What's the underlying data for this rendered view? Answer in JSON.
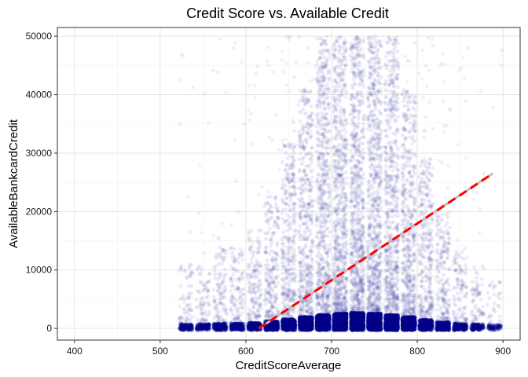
{
  "chart_data": {
    "type": "scatter",
    "title": "Credit Score vs. Available Credit",
    "xlabel": "CreditScoreAverage",
    "ylabel": "AvailableBankcardCredit",
    "xlim": [
      380,
      920
    ],
    "ylim": [
      -2000,
      51500
    ],
    "x_ticks": [
      400,
      500,
      600,
      700,
      800,
      900
    ],
    "y_ticks": [
      0,
      10000,
      20000,
      30000,
      40000,
      50000
    ],
    "grid": true,
    "legend": "none",
    "colors": {
      "points": "#00008b",
      "trend_line": "#ff0000",
      "smooth_line": "#bdbdbd",
      "grid_major": "#e5e5e5",
      "grid_minor": "#f2f2f2",
      "panel_border": "#333333"
    },
    "point_clusters": [
      {
        "x": 530,
        "density": 2
      },
      {
        "x": 550,
        "density": 2
      },
      {
        "x": 570,
        "density": 3
      },
      {
        "x": 590,
        "density": 3
      },
      {
        "x": 610,
        "density": 4
      },
      {
        "x": 630,
        "density": 6
      },
      {
        "x": 650,
        "density": 9
      },
      {
        "x": 670,
        "density": 12
      },
      {
        "x": 690,
        "density": 15
      },
      {
        "x": 710,
        "density": 17
      },
      {
        "x": 730,
        "density": 18
      },
      {
        "x": 750,
        "density": 17
      },
      {
        "x": 770,
        "density": 15
      },
      {
        "x": 790,
        "density": 12
      },
      {
        "x": 810,
        "density": 8
      },
      {
        "x": 830,
        "density": 5
      },
      {
        "x": 850,
        "density": 3
      },
      {
        "x": 870,
        "density": 2
      },
      {
        "x": 890,
        "density": 1
      }
    ],
    "trend_line": {
      "x": [
        615,
        888
      ],
      "y": [
        0,
        26500
      ]
    }
  }
}
